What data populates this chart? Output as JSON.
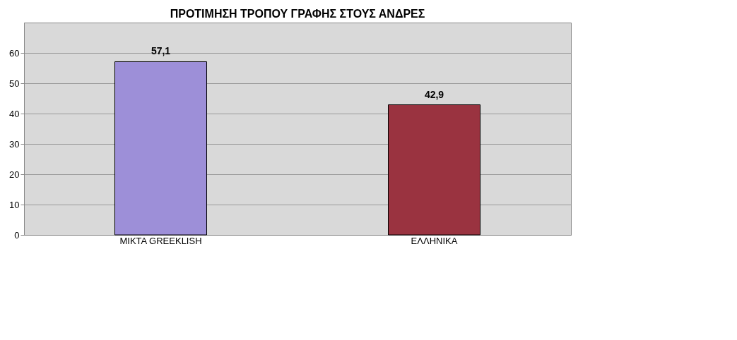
{
  "chart_data": {
    "type": "bar",
    "title": "ΠΡΟΤΙΜΗΣΗ ΤΡΟΠΟΥ ΓΡΑΦΗΣ ΣΤΟΥΣ ΑΝΔΡΕΣ",
    "categories": [
      "ΜΙΚΤΑ GREEKLISH",
      "ΕΛΛΗΝΙΚΑ"
    ],
    "values": [
      57.1,
      42.9
    ],
    "colors": [
      "#9d8fd8",
      "#9a3340"
    ],
    "value_labels": [
      "57,1",
      "42,9"
    ],
    "ylim": [
      0,
      70
    ],
    "yticks": [
      0,
      10,
      20,
      30,
      40,
      50,
      60
    ],
    "grid": "y"
  }
}
